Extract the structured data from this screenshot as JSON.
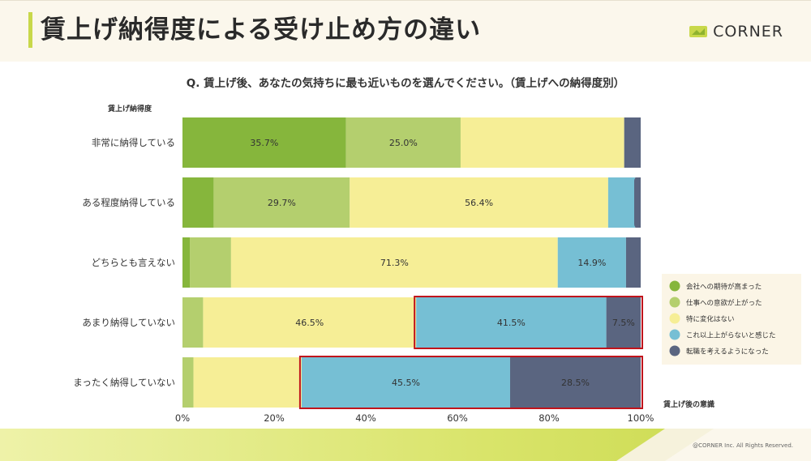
{
  "header": {
    "title": "賃上げ納得度による受け止め方の違い",
    "logo_text": "CORNER",
    "logo_icon": "corner-logo-icon"
  },
  "question": "Q. 賃上げ後、あなたの気持ちに最も近いものを選んでください。（賃上げへの納得度別）",
  "footer": {
    "copyright": "@CORNER Inc. All Rights Reserved."
  },
  "colors": {
    "accent": "#c8d84a",
    "highlight_border": "#c0141c"
  },
  "chart_data": {
    "type": "bar",
    "orientation": "horizontal",
    "stacked": true,
    "percent_stacked": true,
    "ylabel": "賃上げ納得度",
    "legend_title": "賃上げ後の意識",
    "legend_position": "right",
    "xlim": [
      0,
      100
    ],
    "xticks": [
      "0%",
      "20%",
      "40%",
      "60%",
      "80%",
      "100%"
    ],
    "grid": false,
    "categories": [
      "非常に納得している",
      "ある程度納得している",
      "どちらとも言えない",
      "あまり納得していない",
      "まったく納得していない"
    ],
    "series": [
      {
        "name": "会社への期待が高まった",
        "color": "#86b63c",
        "values": [
          35.7,
          6.8,
          1.6,
          0.0,
          0.0
        ]
      },
      {
        "name": "仕事への意欲が上がった",
        "color": "#b4cf6e",
        "values": [
          25.0,
          29.7,
          9.0,
          4.5,
          2.4
        ]
      },
      {
        "name": "特に変化はない",
        "color": "#f6ee96",
        "values": [
          35.7,
          56.4,
          71.3,
          46.5,
          23.6
        ]
      },
      {
        "name": "これ以上上がらないと感じた",
        "color": "#76bfd4",
        "values": [
          0.0,
          5.9,
          14.9,
          41.5,
          45.5
        ]
      },
      {
        "name": "転職を考えるようになった",
        "color": "#5a6580",
        "values": [
          3.6,
          1.2,
          3.2,
          7.5,
          28.5
        ]
      }
    ],
    "data_labels": [
      [
        "35.7%",
        "25.0%",
        "",
        "",
        ""
      ],
      [
        "",
        "29.7%",
        "56.4%",
        "",
        ""
      ],
      [
        "",
        "",
        "71.3%",
        "14.9%",
        ""
      ],
      [
        "",
        "",
        "46.5%",
        "41.5%",
        "7.5%"
      ],
      [
        "",
        "",
        "",
        "45.5%",
        "28.5%"
      ]
    ],
    "highlights": [
      {
        "category_index": 3,
        "from_series": 3,
        "to_series": 4
      },
      {
        "category_index": 4,
        "from_series": 3,
        "to_series": 4
      }
    ]
  }
}
